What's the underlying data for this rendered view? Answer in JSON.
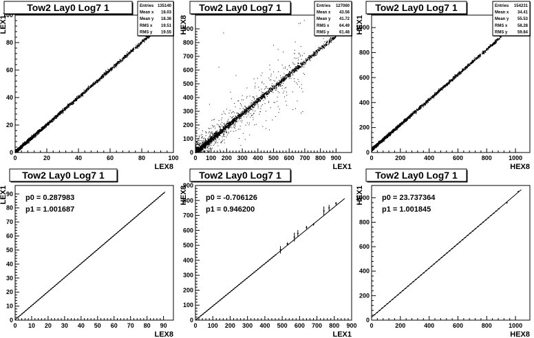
{
  "chart_data": [
    {
      "type": "scatter",
      "title": "Tow2 Lay0 Log7 1",
      "xlabel": "LEX8",
      "ylabel": "LEX1",
      "xlim": [
        0,
        100
      ],
      "ylim": [
        0,
        100
      ],
      "xticks": [
        0,
        20,
        40,
        60,
        80,
        100
      ],
      "yticks": [
        0,
        20,
        40,
        60,
        80,
        100
      ],
      "stats": [
        {
          "label": "Entries",
          "value": "135140"
        },
        {
          "label": "Mean x",
          "value": "18.03"
        },
        {
          "label": "Mean y",
          "value": "18.36"
        },
        {
          "label": "RMS x",
          "value": "19.51"
        },
        {
          "label": "RMS y",
          "value": "19.55"
        }
      ],
      "trend": {
        "slope": 1.0,
        "intercept": 0.3,
        "xmax": 89,
        "spread": 0.8,
        "scatter_spread": 0
      },
      "outliers": []
    },
    {
      "type": "scatter",
      "title": "Tow2 Lay0 Log7 1",
      "xlabel": "LEX1",
      "ylabel": "HEX8",
      "xlim": [
        0,
        1000
      ],
      "ylim": [
        0,
        1000
      ],
      "xticks": [
        0,
        100,
        200,
        300,
        400,
        500,
        600,
        700,
        800,
        900
      ],
      "yticks": [
        0,
        100,
        200,
        300,
        400,
        500,
        600,
        700,
        800,
        900
      ],
      "stats": [
        {
          "label": "Entries",
          "value": "127060"
        },
        {
          "label": "Mean x",
          "value": "43.56"
        },
        {
          "label": "Mean y",
          "value": "41.72"
        },
        {
          "label": "RMS x",
          "value": "64.49"
        },
        {
          "label": "RMS y",
          "value": "61.48"
        }
      ],
      "trend": {
        "slope": 0.946,
        "intercept": -0.7,
        "xmax": 900,
        "spread": 12,
        "scatter_spread": 120
      },
      "outliers": [
        [
          180,
          870
        ],
        [
          500,
          780
        ],
        [
          820,
          830
        ],
        [
          150,
          620
        ],
        [
          260,
          560
        ],
        [
          330,
          470
        ],
        [
          90,
          350
        ],
        [
          420,
          560
        ]
      ]
    },
    {
      "type": "scatter",
      "title": "Tow2 Lay0 Log7 1",
      "xlabel": "HEX8",
      "ylabel": "HEX1",
      "xlim": [
        0,
        1100
      ],
      "ylim": [
        0,
        1100
      ],
      "xticks": [
        0,
        200,
        400,
        600,
        800,
        1000
      ],
      "yticks": [
        0,
        200,
        400,
        600,
        800,
        1000
      ],
      "stats": [
        {
          "label": "Entries",
          "value": "154231"
        },
        {
          "label": "Mean x",
          "value": "34.41"
        },
        {
          "label": "Mean y",
          "value": "55.53"
        },
        {
          "label": "RMS x",
          "value": "58.28"
        },
        {
          "label": "RMS y",
          "value": "59.84"
        }
      ],
      "trend": {
        "slope": 1.002,
        "intercept": 23.7,
        "xmax": 900,
        "spread": 8,
        "scatter_spread": 0
      },
      "outliers": []
    },
    {
      "type": "line",
      "title": "Tow2 Lay0 Log7 1",
      "xlabel": "LEX8",
      "ylabel": "LEX1",
      "xlim": [
        0,
        96
      ],
      "ylim": [
        0,
        96
      ],
      "xticks": [
        0,
        10,
        20,
        30,
        40,
        50,
        60,
        70,
        80,
        90
      ],
      "yticks": [
        0,
        10,
        20,
        30,
        40,
        50,
        60,
        70,
        80,
        90
      ],
      "fit": {
        "p0": "p0 = 0.287983",
        "p1": "p1 = 1.001687",
        "slope": 1.001687,
        "intercept": 0.287983,
        "x0": 0,
        "x1": 91
      },
      "profile": {
        "x_start": 2,
        "x_end": 91,
        "step": 1.1,
        "yerr": 0.3,
        "xerr": 0.5
      },
      "error_points": []
    },
    {
      "type": "line",
      "title": "Tow2 Lay0 Log7 1",
      "xlabel": "LEX1",
      "ylabel": "HEX8",
      "xlim": [
        0,
        900
      ],
      "ylim": [
        0,
        900
      ],
      "xticks": [
        0,
        100,
        200,
        300,
        400,
        500,
        600,
        700,
        800,
        900
      ],
      "yticks": [
        0,
        100,
        200,
        300,
        400,
        500,
        600,
        700,
        800,
        900
      ],
      "fit": {
        "p0": "p0 = -0.706126",
        "p1": "p1 = 0.946200",
        "slope": 0.9462,
        "intercept": -0.706126,
        "x0": 0,
        "x1": 860
      },
      "profile": {
        "x_start": 10,
        "x_end": 470,
        "step": 11,
        "yerr": 3,
        "xerr": 5
      },
      "error_points": [
        [
          490,
          470,
          25
        ],
        [
          530,
          510,
          10
        ],
        [
          570,
          555,
          30
        ],
        [
          590,
          580,
          22
        ],
        [
          640,
          620,
          10
        ],
        [
          680,
          640,
          8
        ],
        [
          740,
          730,
          30
        ],
        [
          770,
          750,
          20
        ],
        [
          810,
          780,
          10
        ]
      ]
    },
    {
      "type": "line",
      "title": "Tow2 Lay0 Log7 1",
      "xlabel": "HEX8",
      "ylabel": "HEX1",
      "xlim": [
        0,
        1100
      ],
      "ylim": [
        0,
        1100
      ],
      "xticks": [
        0,
        200,
        400,
        600,
        800,
        1000
      ],
      "yticks": [
        0,
        200,
        400,
        600,
        800,
        1000
      ],
      "fit": {
        "p0": "p0 = 23.737364",
        "p1": "p1 = 1.001845",
        "slope": 1.001845,
        "intercept": 23.737364,
        "x0": 0,
        "x1": 1040
      },
      "profile": {
        "x_start": 20,
        "x_end": 900,
        "step": 18,
        "yerr": 4,
        "xerr": 6
      },
      "error_points": [
        [
          940,
          960,
          8
        ],
        [
          1020,
          1050,
          6
        ]
      ]
    }
  ]
}
